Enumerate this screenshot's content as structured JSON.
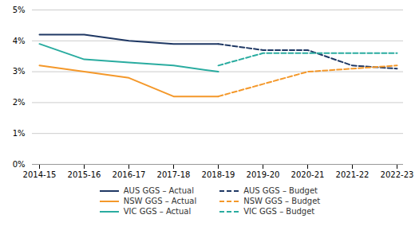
{
  "chart_data": {
    "type": "line",
    "categories": [
      "2014-15",
      "2015-16",
      "2016-17",
      "2017-18",
      "2018-19",
      "2019-20",
      "2020-21",
      "2021-22",
      "2022-23"
    ],
    "series": [
      {
        "name": "AUS GGS – Actual",
        "color": "#1f3864",
        "line_style": "solid",
        "values": [
          4.2,
          4.2,
          4.0,
          3.9,
          3.9,
          null,
          null,
          null,
          null
        ]
      },
      {
        "name": "NSW GGS – Actual",
        "color": "#f4982a",
        "line_style": "solid",
        "values": [
          3.2,
          3.0,
          2.8,
          2.2,
          2.2,
          null,
          null,
          null,
          null
        ]
      },
      {
        "name": "VIC GGS – Actual",
        "color": "#2aaca0",
        "line_style": "solid",
        "values": [
          3.9,
          3.4,
          3.3,
          3.2,
          3.0,
          null,
          null,
          null,
          null
        ]
      },
      {
        "name": "AUS GGS – Budget",
        "color": "#1f3864",
        "line_style": "dashed",
        "values": [
          null,
          null,
          null,
          null,
          3.9,
          3.7,
          3.7,
          3.2,
          3.1
        ]
      },
      {
        "name": "NSW GGS – Budget",
        "color": "#f4982a",
        "line_style": "dashed",
        "values": [
          null,
          null,
          null,
          null,
          2.2,
          2.6,
          3.0,
          3.1,
          3.2
        ]
      },
      {
        "name": "VIC GGS – Budget",
        "color": "#2aaca0",
        "line_style": "dashed",
        "values": [
          null,
          null,
          null,
          null,
          3.2,
          3.6,
          3.6,
          3.6,
          3.6
        ]
      }
    ],
    "ylim": [
      0,
      5
    ],
    "yticks": [
      {
        "value": 0,
        "label": "0%"
      },
      {
        "value": 1,
        "label": "1%"
      },
      {
        "value": 2,
        "label": "2%"
      },
      {
        "value": 3,
        "label": "3%"
      },
      {
        "value": 4,
        "label": "4%"
      },
      {
        "value": 5,
        "label": "5%"
      }
    ],
    "grid": "y",
    "legend": "bottom"
  }
}
